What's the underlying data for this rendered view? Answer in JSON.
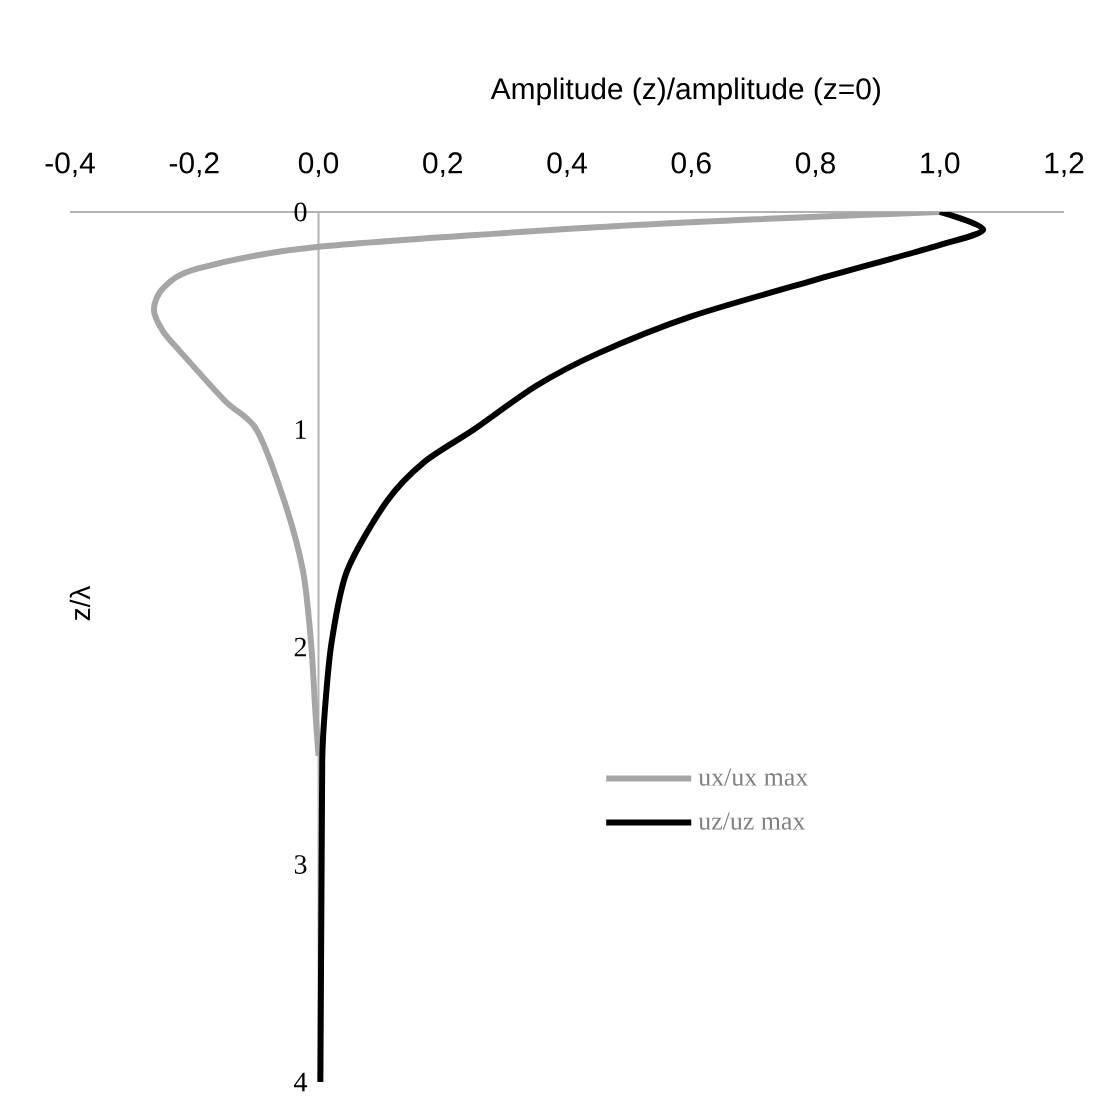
{
  "chart_data": {
    "type": "line",
    "xlabel": "Amplitude  (z)/amplitude  (z=0)",
    "ylabel": "z/λ",
    "xlim": [
      -0.4,
      1.2
    ],
    "ylim": [
      4,
      0
    ],
    "xticks": [
      {
        "value": -0.4,
        "label": "-0,4"
      },
      {
        "value": -0.2,
        "label": "-0,2"
      },
      {
        "value": 0,
        "label": "0,0"
      },
      {
        "value": 0.2,
        "label": "0,2"
      },
      {
        "value": 0.4,
        "label": "0,4"
      },
      {
        "value": 0.6,
        "label": "0,6"
      },
      {
        "value": 0.8,
        "label": "0,8"
      },
      {
        "value": 1.0,
        "label": "1,0"
      },
      {
        "value": 1.2,
        "label": "1,2"
      }
    ],
    "yticks": [
      0,
      1,
      2,
      3,
      4
    ],
    "grid": false,
    "legend": "right",
    "marker": "none",
    "line_style": "solid",
    "series": [
      {
        "name": "ux/ux max",
        "color": "#a6a6a6",
        "x": [
          1.0,
          0.51,
          0.0,
          -0.195,
          -0.25,
          -0.265,
          -0.25,
          -0.22,
          -0.15,
          -0.1,
          -0.055,
          -0.025,
          -0.012,
          -0.005,
          0.0
        ],
        "values": [
          0,
          0.06,
          0.16,
          0.26,
          0.35,
          0.45,
          0.55,
          0.65,
          0.87,
          1.0,
          1.33,
          1.65,
          1.98,
          2.3,
          2.5
        ]
      },
      {
        "name": "uz/uz max",
        "color": "#000000",
        "x": [
          1.0,
          1.07,
          0.99,
          0.79,
          0.6,
          0.45,
          0.35,
          0.25,
          0.17,
          0.11,
          0.046,
          0.021,
          0.01,
          0.006,
          0.005,
          0.003
        ],
        "values": [
          0,
          0.08,
          0.16,
          0.32,
          0.48,
          0.65,
          0.8,
          1.0,
          1.15,
          1.33,
          1.65,
          1.98,
          2.3,
          2.52,
          3.0,
          4.0
        ]
      }
    ]
  }
}
